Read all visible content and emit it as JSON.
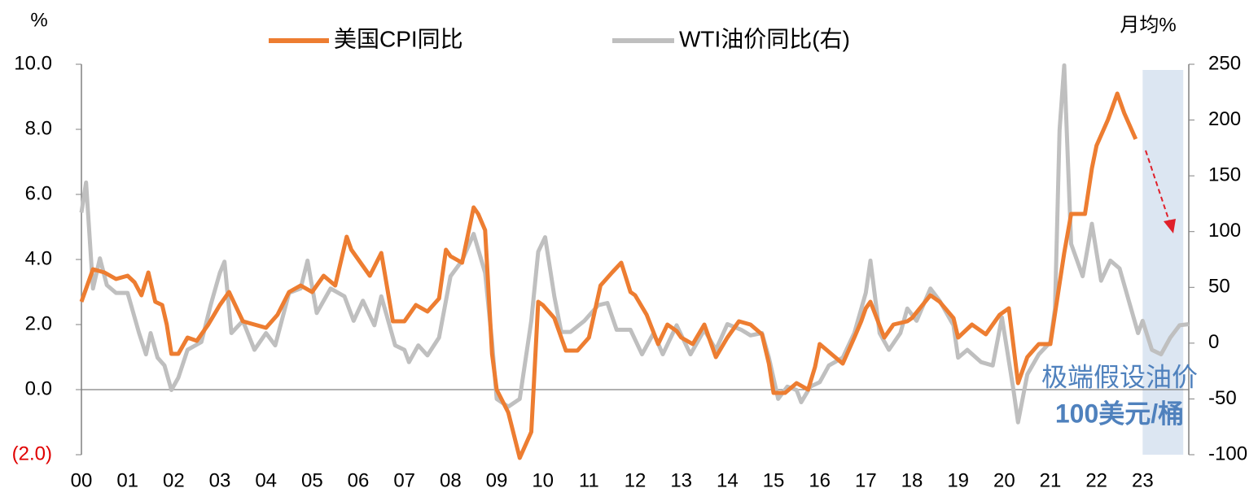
{
  "chart_data": {
    "type": "line",
    "ylabel": "%",
    "y2label": "月均%",
    "annotations": [
      "极端假设油价",
      "100美元/桶"
    ],
    "highlight_span": [
      2023,
      2023.88
    ],
    "xlim": [
      2000,
      2024
    ],
    "xticks": [
      {
        "value": 2000,
        "label": "00"
      },
      {
        "value": 2001,
        "label": "01"
      },
      {
        "value": 2002,
        "label": "02"
      },
      {
        "value": 2003,
        "label": "03"
      },
      {
        "value": 2004,
        "label": "04"
      },
      {
        "value": 2005,
        "label": "05"
      },
      {
        "value": 2006,
        "label": "06"
      },
      {
        "value": 2007,
        "label": "07"
      },
      {
        "value": 2008,
        "label": "08"
      },
      {
        "value": 2009,
        "label": "09"
      },
      {
        "value": 2010,
        "label": "10"
      },
      {
        "value": 2011,
        "label": "11"
      },
      {
        "value": 2012,
        "label": "12"
      },
      {
        "value": 2013,
        "label": "13"
      },
      {
        "value": 2014,
        "label": "14"
      },
      {
        "value": 2015,
        "label": "15"
      },
      {
        "value": 2016,
        "label": "16"
      },
      {
        "value": 2017,
        "label": "17"
      },
      {
        "value": 2018,
        "label": "18"
      },
      {
        "value": 2019,
        "label": "19"
      },
      {
        "value": 2020,
        "label": "20"
      },
      {
        "value": 2021,
        "label": "21"
      },
      {
        "value": 2022,
        "label": "22"
      },
      {
        "value": 2023,
        "label": "23"
      }
    ],
    "ylim": [
      -2,
      10
    ],
    "yticks": [
      {
        "value": -2,
        "label": "(2.0)",
        "color": "#e00000"
      },
      {
        "value": 0,
        "label": "0.0"
      },
      {
        "value": 2,
        "label": "2.0"
      },
      {
        "value": 4,
        "label": "4.0"
      },
      {
        "value": 6,
        "label": "6.0"
      },
      {
        "value": 8,
        "label": "8.0"
      },
      {
        "value": 10,
        "label": "10.0"
      }
    ],
    "y2lim": [
      -100,
      250
    ],
    "y2ticks": [
      -100,
      -50,
      0,
      50,
      100,
      150,
      200,
      250
    ],
    "series": [
      {
        "name": "美国CPI同比",
        "color": "#ed7d31",
        "x": [
          2000.0,
          2000.25,
          2000.5,
          2000.75,
          2001.0,
          2001.15,
          2001.3,
          2001.45,
          2001.6,
          2001.75,
          2001.85,
          2001.95,
          2002.1,
          2002.3,
          2002.5,
          2002.75,
          2003.0,
          2003.2,
          2003.5,
          2003.75,
          2004.0,
          2004.25,
          2004.5,
          2004.75,
          2005.0,
          2005.25,
          2005.5,
          2005.75,
          2005.85,
          2006.0,
          2006.25,
          2006.5,
          2006.75,
          2007.0,
          2007.25,
          2007.5,
          2007.75,
          2007.9,
          2008.0,
          2008.25,
          2008.5,
          2008.6,
          2008.75,
          2008.9,
          2009.0,
          2009.25,
          2009.5,
          2009.75,
          2009.9,
          2010.0,
          2010.25,
          2010.5,
          2010.75,
          2011.0,
          2011.25,
          2011.5,
          2011.7,
          2011.9,
          2012.0,
          2012.25,
          2012.5,
          2012.7,
          2012.9,
          2013.0,
          2013.25,
          2013.5,
          2013.75,
          2014.0,
          2014.25,
          2014.5,
          2014.75,
          2014.9,
          2015.0,
          2015.25,
          2015.5,
          2015.75,
          2015.9,
          2016.0,
          2016.25,
          2016.5,
          2016.75,
          2016.9,
          2017.0,
          2017.1,
          2017.4,
          2017.6,
          2017.9,
          2018.0,
          2018.4,
          2018.6,
          2018.9,
          2019.0,
          2019.3,
          2019.6,
          2019.9,
          2020.1,
          2020.3,
          2020.5,
          2020.75,
          2021.0,
          2021.3,
          2021.45,
          2021.75,
          2021.9,
          2022.0,
          2022.25,
          2022.45,
          2022.6,
          2022.85
        ],
        "values": [
          2.7,
          3.7,
          3.6,
          3.4,
          3.5,
          3.3,
          2.9,
          3.6,
          2.7,
          2.6,
          2.0,
          1.1,
          1.1,
          1.6,
          1.5,
          2.0,
          2.6,
          3.0,
          2.1,
          2.0,
          1.9,
          2.3,
          3.0,
          3.2,
          3.0,
          3.5,
          3.2,
          4.7,
          4.3,
          4.0,
          3.5,
          4.2,
          2.1,
          2.1,
          2.6,
          2.4,
          2.8,
          4.3,
          4.1,
          3.9,
          5.6,
          5.4,
          4.9,
          1.1,
          0.0,
          -0.7,
          -2.1,
          -1.3,
          2.7,
          2.6,
          2.2,
          1.2,
          1.2,
          1.6,
          3.2,
          3.6,
          3.9,
          3.0,
          2.9,
          2.3,
          1.4,
          2.0,
          1.8,
          1.6,
          1.4,
          2.0,
          1.0,
          1.6,
          2.1,
          2.0,
          1.7,
          0.8,
          -0.1,
          -0.1,
          0.2,
          0.0,
          0.7,
          1.4,
          1.1,
          0.8,
          1.6,
          2.1,
          2.5,
          2.7,
          1.6,
          2.0,
          2.1,
          2.2,
          2.9,
          2.7,
          2.2,
          1.6,
          2.0,
          1.7,
          2.3,
          2.5,
          0.2,
          1.0,
          1.4,
          1.4,
          4.2,
          5.4,
          5.4,
          6.8,
          7.5,
          8.3,
          9.1,
          8.5,
          7.7
        ]
      },
      {
        "name": "WTI油价同比(右)",
        "color": "#bfbfbf",
        "axis": "y2",
        "x": [
          2000.0,
          2000.1,
          2000.25,
          2000.4,
          2000.55,
          2000.75,
          2001.0,
          2001.25,
          2001.4,
          2001.5,
          2001.65,
          2001.8,
          2001.95,
          2002.1,
          2002.3,
          2002.6,
          2002.8,
          2003.0,
          2003.1,
          2003.25,
          2003.5,
          2003.75,
          2004.0,
          2004.2,
          2004.5,
          2004.75,
          2004.9,
          2005.1,
          2005.4,
          2005.7,
          2005.9,
          2006.1,
          2006.35,
          2006.5,
          2006.8,
          2007.0,
          2007.1,
          2007.3,
          2007.5,
          2007.75,
          2008.0,
          2008.25,
          2008.5,
          2008.75,
          2008.9,
          2009.0,
          2009.25,
          2009.5,
          2009.75,
          2009.9,
          2010.05,
          2010.25,
          2010.4,
          2010.6,
          2010.9,
          2011.2,
          2011.4,
          2011.6,
          2011.9,
          2012.15,
          2012.4,
          2012.6,
          2012.9,
          2013.2,
          2013.5,
          2013.75,
          2014.0,
          2014.3,
          2014.5,
          2014.75,
          2014.9,
          2015.1,
          2015.3,
          2015.5,
          2015.6,
          2015.8,
          2016.0,
          2016.2,
          2016.5,
          2016.75,
          2017.0,
          2017.1,
          2017.3,
          2017.5,
          2017.75,
          2017.9,
          2018.1,
          2018.4,
          2018.6,
          2018.9,
          2019.0,
          2019.2,
          2019.5,
          2019.75,
          2019.95,
          2020.2,
          2020.3,
          2020.5,
          2020.75,
          2021.0,
          2021.1,
          2021.2,
          2021.3,
          2021.45,
          2021.7,
          2021.9,
          2022.1,
          2022.3,
          2022.5,
          2022.7,
          2022.9,
          2023.0,
          2023.2,
          2023.4,
          2023.6,
          2023.8,
          2024.0
        ],
        "values": [
          117,
          144,
          49,
          76,
          52,
          45,
          45,
          9,
          -10,
          9,
          -13,
          -20,
          -42,
          -31,
          -6,
          1,
          34,
          63,
          73,
          9,
          20,
          -6,
          9,
          -2,
          45,
          49,
          74,
          27,
          49,
          42,
          20,
          38,
          16,
          42,
          -2,
          -6,
          -17,
          -2,
          -11,
          5,
          60,
          74,
          98,
          63,
          1,
          -50,
          -57,
          -50,
          20,
          82,
          95,
          42,
          10,
          10,
          20,
          34,
          36,
          12,
          12,
          -10,
          9,
          -10,
          16,
          -10,
          12,
          -6,
          17,
          12,
          7,
          9,
          -13,
          -50,
          -39,
          -42,
          -53,
          -39,
          -35,
          -20,
          -13,
          9,
          45,
          74,
          9,
          -6,
          9,
          31,
          20,
          49,
          38,
          16,
          -13,
          -6,
          -17,
          -20,
          23,
          -42,
          -71,
          -28,
          -10,
          1,
          31,
          191,
          249,
          89,
          60,
          107,
          56,
          74,
          67,
          38,
          9,
          20,
          -6,
          -10,
          5,
          16,
          17
        ]
      }
    ]
  }
}
